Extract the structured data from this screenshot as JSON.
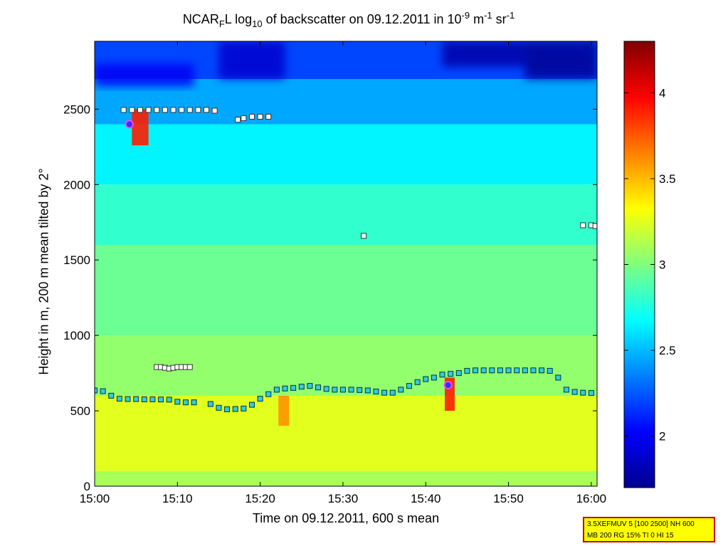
{
  "title": {
    "part1": "NCAR",
    "sub1": "F",
    "part2": "L log",
    "sub2": "10",
    "part3": " of backscatter on 09.12.2011 in 10",
    "sup1": "-9",
    "part4": " m",
    "sup2": "-1",
    "part5": " sr",
    "sup3": "-1"
  },
  "xlabel": "Time on 09.12.2011, 600 s mean",
  "ylabel": "Height in m, 200 m mean tilted by 2°",
  "infobox": {
    "line1": "3.5XEFMUV 5 [100 2500] NH 600",
    "line2": "MB 200 RG 15% TI 0 HI 15"
  },
  "chart_data": {
    "type": "heatmap",
    "x_ticks": [
      "15:00",
      "15:10",
      "15:20",
      "15:30",
      "15:40",
      "15:50",
      "16:00"
    ],
    "x_tick_values_min": [
      0,
      10,
      20,
      30,
      40,
      50,
      60
    ],
    "xlim_min": [
      0,
      60.7
    ],
    "y_ticks": [
      "0",
      "500",
      "1000",
      "1500",
      "2000",
      "2500"
    ],
    "y_tick_values": [
      0,
      500,
      1000,
      1500,
      2000,
      2500
    ],
    "ylim": [
      0,
      2950
    ],
    "colorbar": {
      "range": [
        1.7,
        4.3
      ],
      "ticks": [
        "2",
        "2.5",
        "3",
        "3.5",
        "4"
      ],
      "tick_values": [
        2,
        2.5,
        3,
        3.5,
        4
      ],
      "colormap": "jet"
    },
    "background_field": [
      {
        "height_from": 0,
        "height_to": 100,
        "value": 3.1
      },
      {
        "height_from": 100,
        "height_to": 600,
        "value": 3.25
      },
      {
        "height_from": 600,
        "height_to": 1000,
        "value": 3.05
      },
      {
        "height_from": 1000,
        "height_to": 1600,
        "value": 2.95
      },
      {
        "height_from": 1600,
        "height_to": 2000,
        "value": 2.8
      },
      {
        "height_from": 2000,
        "height_to": 2400,
        "value": 2.65
      },
      {
        "height_from": 2400,
        "height_to": 2700,
        "value": 2.45
      },
      {
        "height_from": 2700,
        "height_to": 2950,
        "value": 2.2
      }
    ],
    "lower_layer_markers": {
      "time_min": [
        0,
        1,
        2,
        3,
        4,
        5,
        6,
        7,
        8,
        9,
        10,
        11,
        12,
        14,
        15,
        16,
        17,
        18,
        19,
        20,
        21,
        22,
        23,
        24,
        25,
        26,
        27,
        28,
        29,
        30,
        31,
        32,
        33,
        34,
        35,
        36,
        37,
        38,
        39,
        40,
        41,
        42,
        43,
        44,
        45,
        46,
        47,
        48,
        49,
        50,
        51,
        52,
        53,
        54,
        55,
        56,
        57,
        58,
        59,
        60
      ],
      "height_m": [
        635,
        630,
        600,
        580,
        578,
        578,
        576,
        576,
        575,
        574,
        560,
        556,
        556,
        545,
        520,
        510,
        512,
        515,
        540,
        580,
        610,
        640,
        648,
        652,
        660,
        665,
        655,
        645,
        640,
        640,
        640,
        638,
        635,
        628,
        620,
        620,
        640,
        665,
        690,
        710,
        720,
        740,
        745,
        750,
        765,
        768,
        768,
        768,
        768,
        768,
        768,
        768,
        768,
        768,
        765,
        720,
        640,
        625,
        620,
        618
      ]
    },
    "upper_layer_markers": {
      "time_min": [
        3.5,
        4.5,
        5.5,
        6.5,
        7.5,
        8.5,
        9.5,
        10.5,
        11.5,
        12.5,
        13.5,
        14.5,
        17.3,
        18,
        19,
        20,
        21,
        32.5,
        59,
        60,
        60.5
      ],
      "height_m": [
        2495,
        2495,
        2495,
        2495,
        2495,
        2495,
        2495,
        2495,
        2495,
        2495,
        2495,
        2490,
        2430,
        2440,
        2450,
        2450,
        2450,
        1660,
        1730,
        1730,
        1725
      ]
    },
    "mid_markers": {
      "time_min": [
        7.5,
        8,
        8.5,
        9,
        9.5,
        10,
        10.5,
        11,
        11.5
      ],
      "height_m": [
        790,
        790,
        785,
        780,
        785,
        790,
        790,
        790,
        790
      ]
    },
    "cloud_base_markers": {
      "time_min": [
        4.2,
        42.7
      ],
      "height_m": [
        2400,
        670
      ]
    },
    "high_backscatter_events": [
      {
        "time_min": [
          4.5,
          6.5
        ],
        "height_m": [
          2260,
          2500
        ],
        "value": 3.9
      },
      {
        "time_min": [
          22.2,
          23.5
        ],
        "height_m": [
          400,
          600
        ],
        "value": 3.6
      },
      {
        "time_min": [
          42.3,
          43.5
        ],
        "height_m": [
          500,
          720
        ],
        "value": 3.9
      }
    ],
    "low_backscatter_patches": [
      {
        "time_min": [
          15,
          23
        ],
        "height_m": [
          2700,
          2950
        ],
        "value": 1.9
      },
      {
        "time_min": [
          42,
          52
        ],
        "height_m": [
          2780,
          2950
        ],
        "value": 1.8
      },
      {
        "time_min": [
          52,
          60.7
        ],
        "height_m": [
          2700,
          2950
        ],
        "value": 1.75
      },
      {
        "time_min": [
          0,
          12
        ],
        "height_m": [
          2650,
          2800
        ],
        "value": 2.0
      }
    ]
  }
}
